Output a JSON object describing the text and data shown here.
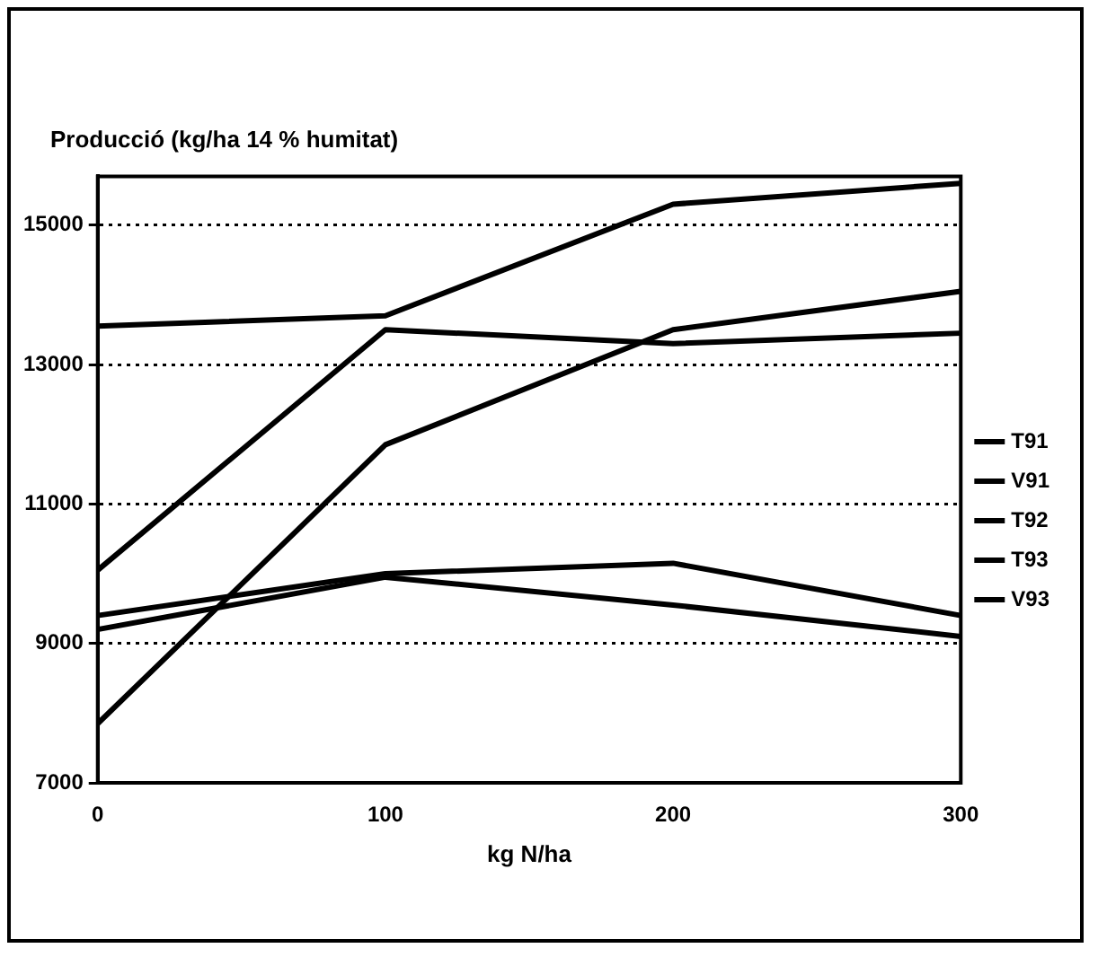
{
  "chart_data": {
    "type": "line",
    "ylabel": "Producció (kg/ha 14 % humitat)",
    "xlabel": "kg N/ha",
    "x": [
      0,
      100,
      200,
      300
    ],
    "series": [
      {
        "name": "T91",
        "color": "#000000",
        "values": [
          13550,
          13700,
          15300,
          15600
        ]
      },
      {
        "name": "V91",
        "color": "#000000",
        "values": [
          10050,
          13500,
          13300,
          13450
        ]
      },
      {
        "name": "T92",
        "color": "#000000",
        "values": [
          7850,
          11850,
          13500,
          14050
        ]
      },
      {
        "name": "T93",
        "color": "#000000",
        "values": [
          9400,
          10000,
          10150,
          9400
        ]
      },
      {
        "name": "V93",
        "color": "#000000",
        "values": [
          9200,
          9950,
          9550,
          9100
        ]
      }
    ],
    "xlim": [
      0,
      300
    ],
    "xticks": [
      0,
      100,
      200,
      300
    ],
    "ylim": [
      7000,
      15700
    ],
    "yticks": [
      7000,
      9000,
      11000,
      13000,
      15000
    ],
    "grid": "y",
    "legend": "right",
    "marker": "none",
    "line_style": "solid"
  }
}
